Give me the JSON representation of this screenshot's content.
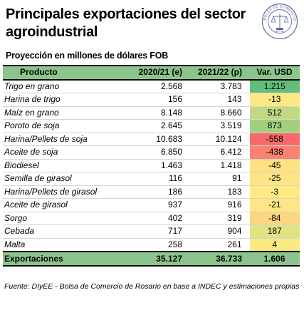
{
  "header": {
    "title": "Principales exportaciones del sector agroindustrial",
    "subtitle": "Proyección en millones de dólares FOB",
    "seal_text": "BOLSA DE COMERCIO DE ROSARIO"
  },
  "table": {
    "columns": [
      "Producto",
      "2020/21 (e)",
      "2021/22 (p)",
      "Var. USD"
    ],
    "rows": [
      {
        "product": "Trigo en grano",
        "y2021": "2.568",
        "y2122": "3.783",
        "var": "1.215",
        "var_color": "#63be7b"
      },
      {
        "product": "Harina de trigo",
        "y2021": "156",
        "y2122": "143",
        "var": "-13",
        "var_color": "#fde883"
      },
      {
        "product": "Maíz en grano",
        "y2021": "8.148",
        "y2122": "8.660",
        "var": "512",
        "var_color": "#c1da81"
      },
      {
        "product": "Poroto de soja",
        "y2021": "2.645",
        "y2122": "3.519",
        "var": "873",
        "var_color": "#a2d07f"
      },
      {
        "product": "Harina/Pellets de soja",
        "y2021": "10.683",
        "y2122": "10.124",
        "var": "-558",
        "var_color": "#f8696b"
      },
      {
        "product": "Aceite de soja",
        "y2021": "6.850",
        "y2122": "6.412",
        "var": "-438",
        "var_color": "#f98370"
      },
      {
        "product": "Biodiesel",
        "y2021": "1.463",
        "y2122": "1.418",
        "var": "-45",
        "var_color": "#fde182"
      },
      {
        "product": "Semilla de girasol",
        "y2021": "116",
        "y2122": "91",
        "var": "-25",
        "var_color": "#fde583"
      },
      {
        "product": "Harina/Pellets de girasol",
        "y2021": "186",
        "y2122": "183",
        "var": "-3",
        "var_color": "#feea83"
      },
      {
        "product": "Aceite de girasol",
        "y2021": "937",
        "y2122": "916",
        "var": "-21",
        "var_color": "#fde683"
      },
      {
        "product": "Sorgo",
        "y2021": "402",
        "y2122": "319",
        "var": "-84",
        "var_color": "#fcd680"
      },
      {
        "product": "Cebada",
        "y2021": "717",
        "y2122": "904",
        "var": "187",
        "var_color": "#dfe382"
      },
      {
        "product": "Malta",
        "y2021": "258",
        "y2122": "261",
        "var": "4",
        "var_color": "#fbea84"
      }
    ],
    "total": {
      "label": "Exportaciones",
      "y2021": "35.127",
      "y2122": "36.733",
      "var": "1.606"
    }
  },
  "footnote": "Fuente: DIyEE - Bolsa de Comercio de Rosario en base a INDEC y estimaciones propias"
}
